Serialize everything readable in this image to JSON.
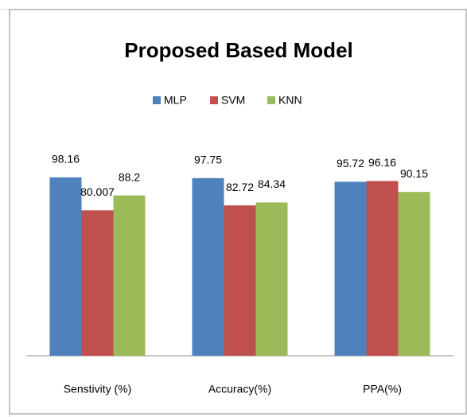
{
  "chart_data": {
    "type": "bar",
    "title": "Proposed Based Model",
    "categories": [
      "Senstivity (%)",
      "Accuracy(%)",
      "PPA(%)"
    ],
    "series": [
      {
        "name": "MLP",
        "color": "#4f81bd",
        "values": [
          98.16,
          97.75,
          95.72
        ]
      },
      {
        "name": "SVM",
        "color": "#c0504d",
        "values": [
          80.007,
          82.72,
          96.16
        ]
      },
      {
        "name": "KNN",
        "color": "#9bbb59",
        "values": [
          88.2,
          84.34,
          90.15
        ]
      }
    ],
    "ylim": [
      0,
      120
    ]
  }
}
